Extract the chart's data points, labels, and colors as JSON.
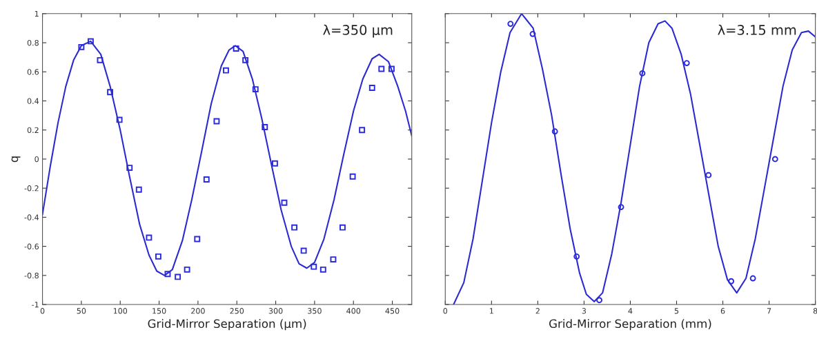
{
  "chart_data": [
    {
      "type": "scatter",
      "xlabel": "Grid-Mirror Separation (μm)",
      "ylabel": "q",
      "annotations": [
        "λ=350 μm"
      ],
      "xlim": [
        0,
        475
      ],
      "ylim": [
        -1,
        1
      ],
      "xticks": [
        0,
        50,
        100,
        150,
        200,
        250,
        300,
        350,
        400,
        450
      ],
      "yticks": [
        -1,
        -0.8,
        -0.6,
        -0.4,
        -0.2,
        0,
        0.2,
        0.4,
        0.6,
        0.8,
        1
      ],
      "grid": false,
      "series": [
        {
          "marker": "square",
          "color": "#2a2ae0",
          "x": [
            50,
            62,
            74,
            87,
            99,
            112,
            124,
            137,
            149,
            161,
            174,
            186,
            199,
            211,
            224,
            236,
            249,
            261,
            274,
            286,
            299,
            311,
            324,
            336,
            349,
            361,
            374,
            386,
            399,
            411,
            424,
            436,
            449
          ],
          "values": [
            0.77,
            0.81,
            0.68,
            0.46,
            0.27,
            -0.06,
            -0.21,
            -0.54,
            -0.67,
            -0.79,
            -0.81,
            -0.76,
            -0.55,
            -0.14,
            0.26,
            0.61,
            0.76,
            0.68,
            0.48,
            0.22,
            -0.03,
            -0.3,
            -0.47,
            -0.63,
            -0.74,
            -0.76,
            -0.69,
            -0.47,
            -0.12,
            0.2,
            0.49,
            0.62,
            0.62
          ]
        },
        {
          "type": "line",
          "marker": "none",
          "line_style": "solid",
          "color": "#2a2ad0",
          "x": [
            0,
            10,
            20,
            30,
            40,
            50,
            62,
            75,
            87,
            100,
            112,
            125,
            137,
            147,
            157,
            167,
            180,
            192,
            205,
            217,
            230,
            240,
            248,
            258,
            270,
            282,
            295,
            307,
            320,
            330,
            340,
            350,
            362,
            375,
            387,
            400,
            412,
            424,
            433,
            445,
            457,
            467,
            475
          ],
          "values": [
            -0.38,
            -0.05,
            0.25,
            0.5,
            0.68,
            0.78,
            0.81,
            0.72,
            0.5,
            0.2,
            -0.12,
            -0.45,
            -0.66,
            -0.77,
            -0.8,
            -0.76,
            -0.56,
            -0.28,
            0.06,
            0.38,
            0.64,
            0.75,
            0.78,
            0.74,
            0.55,
            0.28,
            -0.05,
            -0.35,
            -0.6,
            -0.72,
            -0.75,
            -0.71,
            -0.55,
            -0.28,
            0.02,
            0.33,
            0.55,
            0.69,
            0.72,
            0.67,
            0.5,
            0.33,
            0.16
          ]
        }
      ]
    },
    {
      "type": "scatter",
      "xlabel": "Grid-Mirror Separation (mm)",
      "annotations": [
        "λ=3.15 mm"
      ],
      "xlim": [
        0,
        8
      ],
      "ylim": [
        -1,
        1
      ],
      "xticks": [
        0,
        1,
        2,
        3,
        4,
        5,
        6,
        7,
        8
      ],
      "yticks": [
        -1,
        -0.8,
        -0.6,
        -0.4,
        -0.2,
        0,
        0.2,
        0.4,
        0.6,
        0.8,
        1
      ],
      "tick_labels": "x",
      "grid": false,
      "series": [
        {
          "marker": "circle",
          "color": "#2a2ae0",
          "x": [
            1.41,
            1.89,
            2.37,
            2.84,
            3.33,
            3.8,
            4.26,
            5.22,
            5.69,
            6.18,
            6.65,
            7.13
          ],
          "values": [
            0.93,
            0.86,
            0.19,
            -0.67,
            -0.97,
            -0.33,
            0.59,
            0.66,
            -0.11,
            -0.84,
            -0.82,
            0.0
          ]
        },
        {
          "type": "line",
          "marker": "none",
          "line_style": "solid",
          "color": "#2a2ad0",
          "x": [
            0.18,
            0.4,
            0.6,
            0.8,
            1.0,
            1.2,
            1.4,
            1.65,
            1.9,
            2.1,
            2.3,
            2.5,
            2.7,
            2.9,
            3.05,
            3.22,
            3.4,
            3.6,
            3.8,
            4.0,
            4.2,
            4.4,
            4.6,
            4.75,
            4.9,
            5.1,
            5.3,
            5.5,
            5.7,
            5.9,
            6.1,
            6.3,
            6.5,
            6.7,
            6.9,
            7.1,
            7.3,
            7.5,
            7.7,
            7.85,
            8.0
          ],
          "values": [
            -1.0,
            -0.85,
            -0.55,
            -0.15,
            0.25,
            0.6,
            0.87,
            1.0,
            0.9,
            0.62,
            0.3,
            -0.1,
            -0.48,
            -0.78,
            -0.93,
            -0.98,
            -0.92,
            -0.65,
            -0.3,
            0.1,
            0.5,
            0.8,
            0.93,
            0.95,
            0.9,
            0.72,
            0.45,
            0.1,
            -0.25,
            -0.6,
            -0.83,
            -0.92,
            -0.82,
            -0.55,
            -0.2,
            0.15,
            0.5,
            0.75,
            0.87,
            0.88,
            0.84
          ]
        }
      ]
    }
  ]
}
